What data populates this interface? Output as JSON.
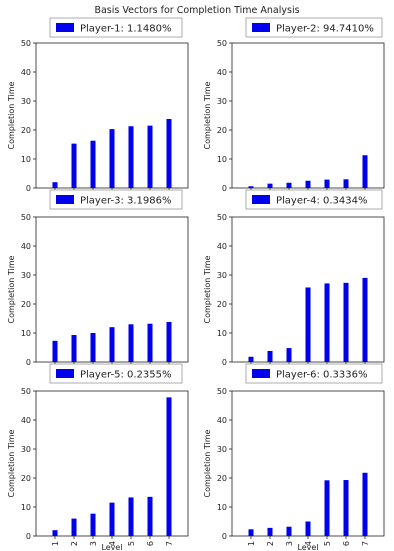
{
  "title": "Basis Vectors for Completion Time Analysis",
  "colors": {
    "bar": "#0000ee",
    "axis": "#222222"
  },
  "chart_data": [
    {
      "type": "bar",
      "legend": "Player-1: 1.1480%",
      "categories": [
        "1",
        "2",
        "3",
        "4",
        "5",
        "6",
        "7"
      ],
      "values": [
        2.0,
        15.3,
        16.3,
        20.3,
        21.3,
        21.5,
        23.8
      ],
      "ylabel": "Completion Time",
      "xlabel": "",
      "ylim": [
        0,
        50
      ],
      "yticks": [
        0,
        10,
        20,
        30,
        40,
        50
      ]
    },
    {
      "type": "bar",
      "legend": "Player-2: 94.7410%",
      "categories": [
        "1",
        "2",
        "3",
        "4",
        "5",
        "6",
        "7"
      ],
      "values": [
        0.6,
        1.5,
        1.8,
        2.5,
        2.9,
        3.0,
        11.3
      ],
      "ylabel": "Completion Time",
      "xlabel": "",
      "ylim": [
        0,
        50
      ],
      "yticks": [
        0,
        10,
        20,
        30,
        40,
        50
      ]
    },
    {
      "type": "bar",
      "legend": "Player-3: 3.1986%",
      "categories": [
        "1",
        "2",
        "3",
        "4",
        "5",
        "6",
        "7"
      ],
      "values": [
        7.3,
        9.3,
        10.0,
        12.0,
        13.0,
        13.2,
        13.8
      ],
      "ylabel": "Completion Time",
      "xlabel": "",
      "ylim": [
        0,
        50
      ],
      "yticks": [
        0,
        10,
        20,
        30,
        40,
        50
      ]
    },
    {
      "type": "bar",
      "legend": "Player-4: 0.3434%",
      "categories": [
        "1",
        "2",
        "3",
        "4",
        "5",
        "6",
        "7"
      ],
      "values": [
        1.8,
        3.8,
        4.8,
        25.7,
        27.1,
        27.3,
        29.0
      ],
      "ylabel": "Completion Time",
      "xlabel": "",
      "ylim": [
        0,
        50
      ],
      "yticks": [
        0,
        10,
        20,
        30,
        40,
        50
      ]
    },
    {
      "type": "bar",
      "legend": "Player-5: 0.2355%",
      "categories": [
        "1",
        "2",
        "3",
        "4",
        "5",
        "6",
        "7"
      ],
      "values": [
        2.0,
        6.0,
        7.7,
        11.5,
        13.3,
        13.5,
        47.8
      ],
      "ylabel": "Completion Time",
      "xlabel": "Level",
      "ylim": [
        0,
        50
      ],
      "yticks": [
        0,
        10,
        20,
        30,
        40,
        50
      ]
    },
    {
      "type": "bar",
      "legend": "Player-6: 0.3336%",
      "categories": [
        "1",
        "2",
        "3",
        "4",
        "5",
        "6",
        "7"
      ],
      "values": [
        2.3,
        2.8,
        3.2,
        5.0,
        19.2,
        19.3,
        21.8
      ],
      "ylabel": "Completion Time",
      "xlabel": "Level",
      "ylim": [
        0,
        50
      ],
      "yticks": [
        0,
        10,
        20,
        30,
        40,
        50
      ]
    }
  ]
}
